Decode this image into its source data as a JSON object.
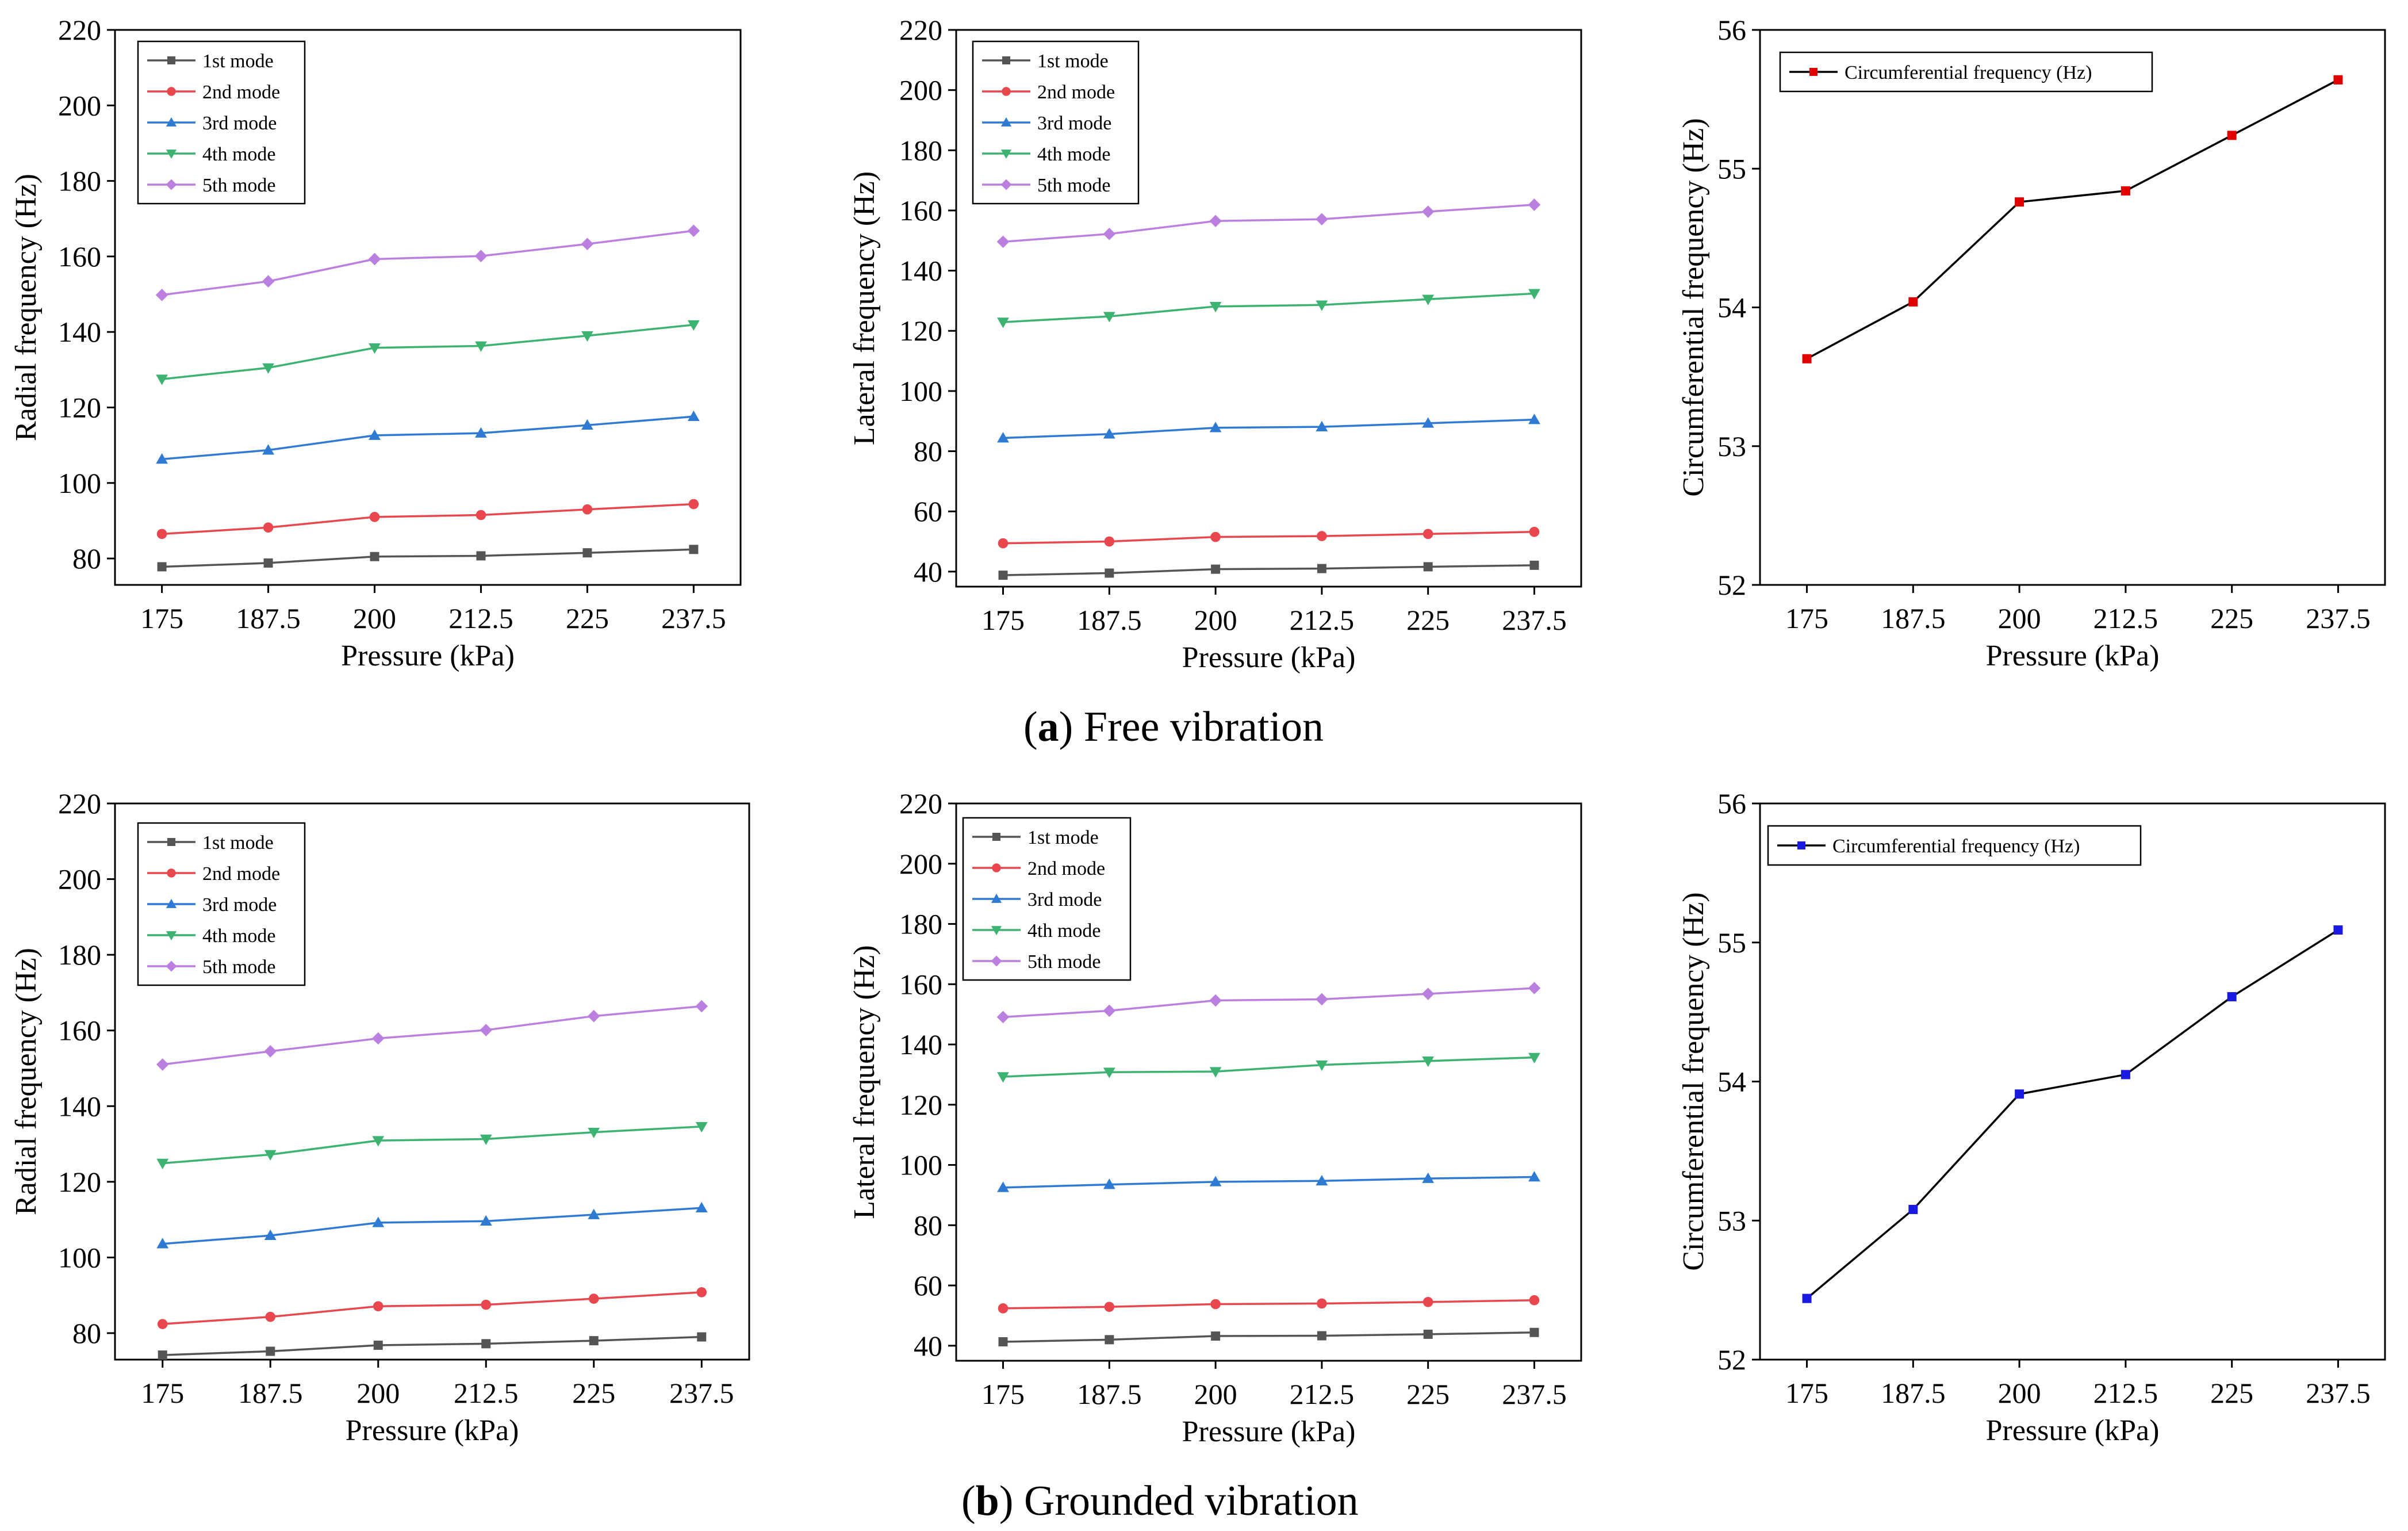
{
  "captions": {
    "a": {
      "label": "a",
      "text": "Free vibration"
    },
    "b": {
      "label": "b",
      "text": "Grounded vibration"
    }
  },
  "chart_data": [
    {
      "id": "a-radial",
      "type": "line",
      "xlabel": "Pressure (kPa)",
      "ylabel": "Radial frequency  (Hz)",
      "categories": [
        "175",
        "187.5",
        "200",
        "212.5",
        "225",
        "237.5"
      ],
      "ylim": [
        73,
        220
      ],
      "yticks": [
        80,
        100,
        120,
        140,
        160,
        180,
        200,
        220
      ],
      "legend": "top-left",
      "series": [
        {
          "name": "1st mode",
          "color": "#555555",
          "marker": "square",
          "values": [
            77.8,
            78.8,
            80.5,
            80.7,
            81.5,
            82.4
          ]
        },
        {
          "name": "2nd mode",
          "color": "#e8474d",
          "marker": "circle",
          "values": [
            86.5,
            88.2,
            91.0,
            91.5,
            93.0,
            94.4
          ]
        },
        {
          "name": "3rd mode",
          "color": "#2f7ad3",
          "marker": "triangle",
          "values": [
            106.3,
            108.7,
            112.6,
            113.2,
            115.3,
            117.6
          ]
        },
        {
          "name": "4th mode",
          "color": "#3cb371",
          "marker": "tri-down",
          "values": [
            127.5,
            130.5,
            135.8,
            136.3,
            139.0,
            141.9
          ]
        },
        {
          "name": "5th mode",
          "color": "#bb7fe0",
          "marker": "diamond",
          "values": [
            149.8,
            153.4,
            159.3,
            160.1,
            163.3,
            166.8
          ]
        }
      ]
    },
    {
      "id": "a-lateral",
      "type": "line",
      "xlabel": "Pressure (kPa)",
      "ylabel": "Lateral frequency (Hz)",
      "categories": [
        "175",
        "187.5",
        "200",
        "212.5",
        "225",
        "237.5"
      ],
      "ylim": [
        35,
        220
      ],
      "yticks": [
        40,
        60,
        80,
        100,
        120,
        140,
        160,
        180,
        200,
        220
      ],
      "legend": "top-left",
      "series": [
        {
          "name": "1st mode",
          "color": "#555555",
          "marker": "square",
          "values": [
            38.8,
            39.5,
            40.8,
            41.0,
            41.6,
            42.1
          ]
        },
        {
          "name": "2nd mode",
          "color": "#e8474d",
          "marker": "circle",
          "values": [
            49.4,
            50.0,
            51.5,
            51.8,
            52.5,
            53.2
          ]
        },
        {
          "name": "3rd mode",
          "color": "#2f7ad3",
          "marker": "triangle",
          "values": [
            84.4,
            85.7,
            87.8,
            88.1,
            89.3,
            90.5
          ]
        },
        {
          "name": "4th mode",
          "color": "#3cb371",
          "marker": "tri-down",
          "values": [
            122.9,
            124.8,
            128.1,
            128.6,
            130.5,
            132.4
          ]
        },
        {
          "name": "5th mode",
          "color": "#bb7fe0",
          "marker": "diamond",
          "values": [
            149.6,
            152.2,
            156.5,
            157.1,
            159.6,
            161.9
          ]
        }
      ]
    },
    {
      "id": "a-circ",
      "type": "line",
      "xlabel": "Pressure (kPa)",
      "ylabel": "Circumferential frequency (Hz)",
      "categories": [
        "175",
        "187.5",
        "200",
        "212.5",
        "225",
        "237.5"
      ],
      "ylim": [
        52,
        56
      ],
      "yticks": [
        52,
        53,
        54,
        55,
        56
      ],
      "legend": "top-left",
      "series": [
        {
          "name": "Circumferential frequency (Hz)",
          "color": "#000000",
          "markerColor": "#e00000",
          "marker": "square",
          "values": [
            53.63,
            54.04,
            54.76,
            54.84,
            55.24,
            55.64
          ]
        }
      ]
    },
    {
      "id": "b-radial",
      "type": "line",
      "xlabel": "Pressure (kPa)",
      "ylabel": "Radial frequency (Hz)",
      "categories": [
        "175",
        "187.5",
        "200",
        "212.5",
        "225",
        "237.5"
      ],
      "ylim": [
        73,
        220
      ],
      "yticks": [
        80,
        100,
        120,
        140,
        160,
        180,
        200,
        220
      ],
      "legend": "top-left",
      "series": [
        {
          "name": "1st mode",
          "color": "#555555",
          "marker": "square",
          "values": [
            74.2,
            75.2,
            76.8,
            77.2,
            78.0,
            79.0
          ]
        },
        {
          "name": "2nd mode",
          "color": "#e8474d",
          "marker": "circle",
          "values": [
            82.4,
            84.3,
            87.1,
            87.5,
            89.1,
            90.8
          ]
        },
        {
          "name": "3rd mode",
          "color": "#2f7ad3",
          "marker": "triangle",
          "values": [
            103.6,
            105.8,
            109.2,
            109.6,
            111.3,
            113.1
          ]
        },
        {
          "name": "4th mode",
          "color": "#3cb371",
          "marker": "tri-down",
          "values": [
            124.9,
            127.2,
            130.9,
            131.3,
            133.1,
            134.6
          ]
        },
        {
          "name": "5th mode",
          "color": "#bb7fe0",
          "marker": "diamond",
          "values": [
            151.0,
            154.5,
            157.9,
            160.1,
            163.8,
            166.4
          ]
        }
      ]
    },
    {
      "id": "b-lateral",
      "type": "line",
      "xlabel": "Pressure (kPa)",
      "ylabel": "Lateral frequency (Hz)",
      "categories": [
        "175",
        "187.5",
        "200",
        "212.5",
        "225",
        "237.5"
      ],
      "ylim": [
        35,
        220
      ],
      "yticks": [
        40,
        60,
        80,
        100,
        120,
        140,
        160,
        180,
        200,
        220
      ],
      "legend": "top-left",
      "series": [
        {
          "name": "1st mode",
          "color": "#555555",
          "marker": "square",
          "values": [
            41.3,
            42.0,
            43.2,
            43.3,
            43.8,
            44.4
          ]
        },
        {
          "name": "2nd mode",
          "color": "#e8474d",
          "marker": "circle",
          "values": [
            52.4,
            52.9,
            53.8,
            54.0,
            54.5,
            55.1
          ]
        },
        {
          "name": "3rd mode",
          "color": "#2f7ad3",
          "marker": "triangle",
          "values": [
            92.5,
            93.5,
            94.4,
            94.7,
            95.5,
            96.0
          ]
        },
        {
          "name": "4th mode",
          "color": "#3cb371",
          "marker": "tri-down",
          "values": [
            129.3,
            130.8,
            131.0,
            133.2,
            134.5,
            135.7
          ]
        },
        {
          "name": "5th mode",
          "color": "#bb7fe0",
          "marker": "diamond",
          "values": [
            149.1,
            151.2,
            154.6,
            155.0,
            156.8,
            158.7
          ]
        }
      ]
    },
    {
      "id": "b-circ",
      "type": "line",
      "xlabel": "Pressure (kPa)",
      "ylabel": "Circumferential frequency (Hz)",
      "categories": [
        "175",
        "187.5",
        "200",
        "212.5",
        "225",
        "237.5"
      ],
      "ylim": [
        52,
        56
      ],
      "yticks": [
        52,
        53,
        54,
        55,
        56
      ],
      "legend": "top-left",
      "series": [
        {
          "name": "Circumferential frequency (Hz)",
          "color": "#000000",
          "markerColor": "#1a1ae0",
          "marker": "square",
          "values": [
            52.44,
            53.08,
            53.91,
            54.05,
            54.61,
            55.09
          ]
        }
      ]
    }
  ]
}
